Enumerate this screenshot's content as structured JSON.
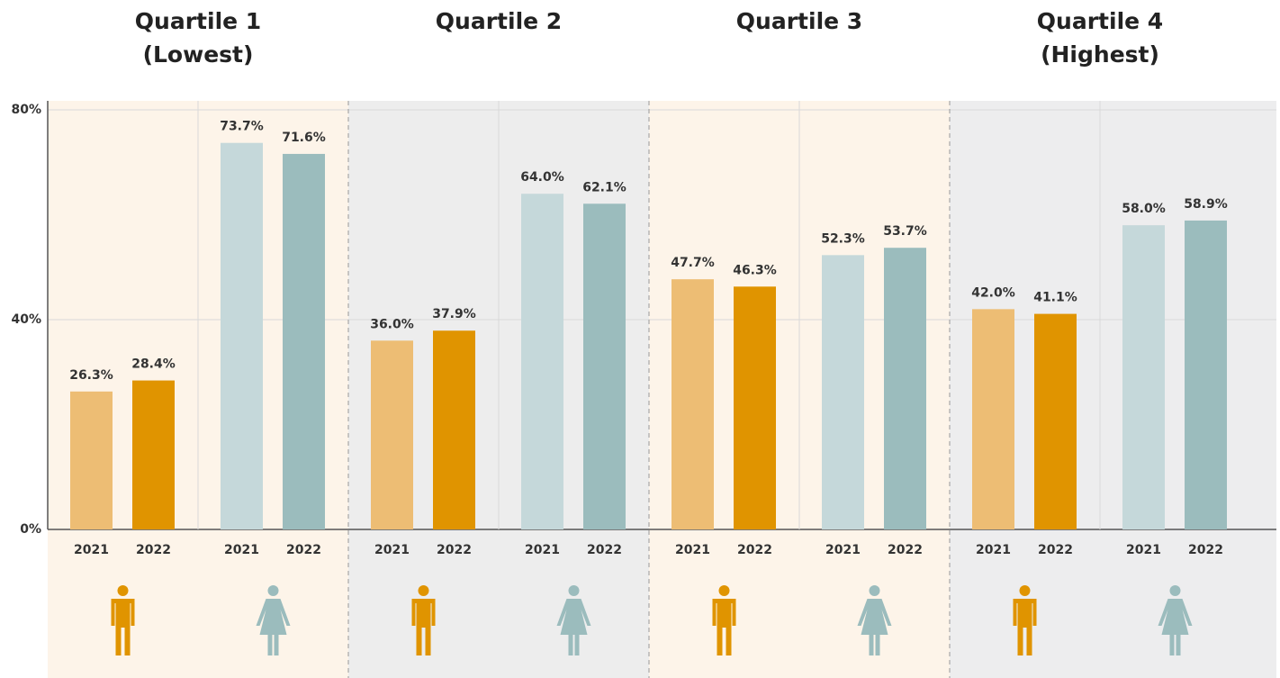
{
  "chart_data": {
    "type": "bar",
    "categories": [
      [
        "Quartile 1",
        "(Lowest)"
      ],
      [
        "Quartile 2"
      ],
      [
        "Quartile 3"
      ],
      [
        "Quartile 4",
        "(Highest)"
      ]
    ],
    "series": [
      {
        "label": "2021",
        "color": "#edbd74",
        "values": [
          26.3,
          36.0,
          47.7,
          42.0
        ],
        "value_labels": [
          "26.3%",
          "36.0%",
          "47.7%",
          "42.0%"
        ]
      },
      {
        "label": "2022",
        "color": "#e09400",
        "values": [
          28.4,
          37.9,
          46.3,
          41.1
        ],
        "value_labels": [
          "28.4%",
          "37.9%",
          "46.3%",
          "41.1%"
        ]
      },
      {
        "label": "2021",
        "color": "#c5d8da",
        "values": [
          73.7,
          64.0,
          52.3,
          58.0
        ],
        "value_labels": [
          "73.7%",
          "64.0%",
          "52.3%",
          "58.0%"
        ]
      },
      {
        "label": "2022",
        "color": "#9bbcbd",
        "values": [
          71.6,
          62.1,
          53.7,
          58.9
        ],
        "value_labels": [
          "71.6%",
          "62.1%",
          "53.7%",
          "58.9%"
        ]
      }
    ],
    "ylim": [
      0,
      80
    ],
    "yticks": [
      {
        "value": 0,
        "label": "0%"
      },
      {
        "value": 40,
        "label": "40%"
      },
      {
        "value": 80,
        "label": "80%"
      }
    ],
    "grid": true
  }
}
